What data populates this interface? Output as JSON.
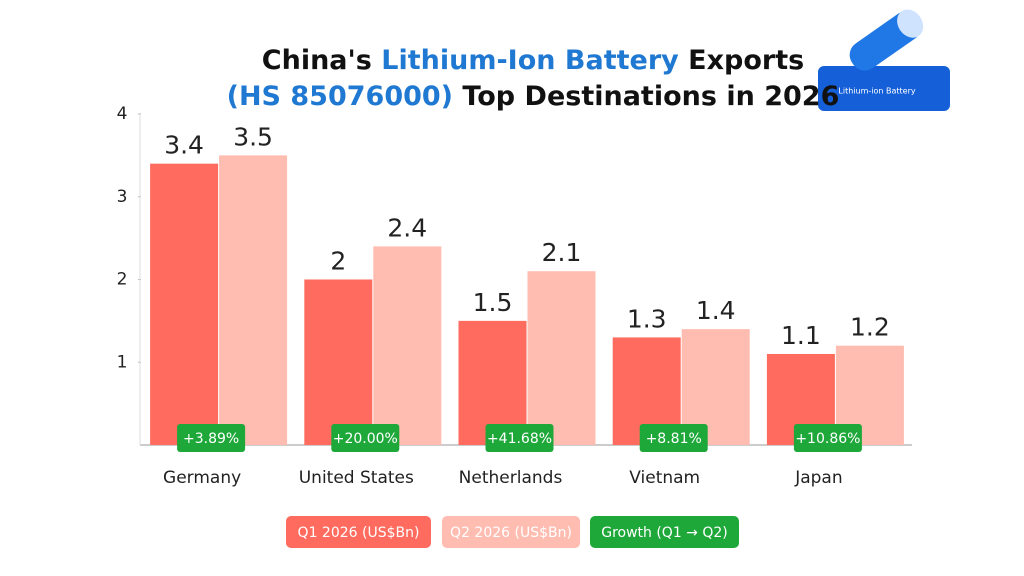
{
  "chart_data": {
    "type": "bar",
    "title_segments": [
      {
        "text": "China's ",
        "color": "#111111"
      },
      {
        "text": "Lithium-Ion Battery",
        "color": "#1f78d1"
      },
      {
        "text": " Exports",
        "color": "#111111"
      }
    ],
    "subtitle_segments": [
      {
        "text": "(HS 85076000)",
        "color": "#1f78d1"
      },
      {
        "text": " Top Destinations in 2026",
        "color": "#111111"
      }
    ],
    "icon_label": "Lithium-ion Battery",
    "categories": [
      "Germany",
      "United States",
      "Netherlands",
      "Vietnam",
      "Japan"
    ],
    "series": [
      {
        "name": "Q1 2026 (US$Bn)",
        "color": "#ff6b5e",
        "values": [
          3.4,
          2,
          1.5,
          1.3,
          1.1
        ]
      },
      {
        "name": "Q2 2026 (US$Bn)",
        "color": "#ffbcb1",
        "values": [
          3.5,
          2.4,
          2.1,
          1.4,
          1.2
        ]
      }
    ],
    "growth_name": "Growth (Q1 → Q2)",
    "growth_color": "#1fa83a",
    "growth_labels": [
      "+3.89%",
      "+20.00%",
      "+41.68%",
      "+8.81%",
      "+10.86%"
    ],
    "ylim": [
      0,
      4
    ],
    "yticks": [
      1,
      2,
      3,
      4
    ]
  }
}
